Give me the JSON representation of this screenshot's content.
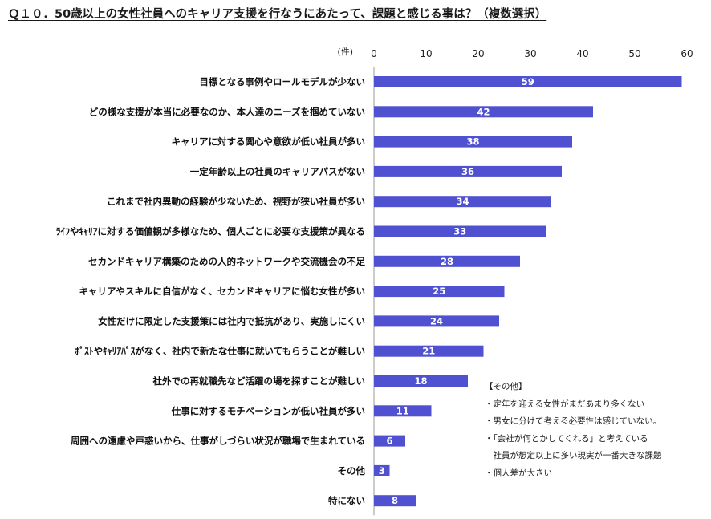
{
  "title": "Ｑ１０．50歳以上の女性社員へのキャリア支援を行なうにあたって、課題と感じる事は？（複数選択）",
  "colors": {
    "bar": "#5051d0",
    "axis": "#999999",
    "value_label": "#ffffff"
  },
  "notes": {
    "heading": "【その他】",
    "items": [
      "・定年を迎える女性がまだあまり多くない",
      "・男女に分けて考える必要性は感じていない。",
      "・「会社が何とかしてくれる」と考えている",
      "　社員が想定以上に多い現実が一番大きな課題",
      "・個人差が大きい"
    ]
  },
  "chart_data": {
    "type": "bar",
    "orientation": "horizontal",
    "unit_label": "(件)",
    "xlim": [
      0,
      60
    ],
    "ticks": [
      "0",
      "10",
      "20",
      "30",
      "40",
      "50",
      "60"
    ],
    "categories": [
      "目標となる事例やロールモデルが少ない",
      "どの様な支援が本当に必要なのか、本人達のニーズを掴めていない",
      "キャリアに対する関心や意欲が低い社員が多い",
      "一定年齢以上の社員のキャリアパスがない",
      "これまで社内異動の経験が少ないため、視野が狭い社員が多い",
      "ﾗｲﾌやｷｬﾘｱに対する価値観が多様なため、個人ごとに必要な支援策が異なる",
      "セカンドキャリア構築のための人的ネットワークや交流機会の不足",
      "キャリアやスキルに自信がなく、セカンドキャリアに悩む女性が多い",
      "女性だけに限定した支援策には社内で抵抗があり、実施しにくい",
      "ﾎﾟｽﾄやｷｬﾘｱﾊﾟｽがなく、社内で新たな仕事に就いてもらうことが難しい",
      "社外での再就職先など活躍の場を探すことが難しい",
      "仕事に対するモチベーションが低い社員が多い",
      "周囲への遠慮や戸惑いから、仕事がしづらい状況が職場で生まれている",
      "その他",
      "特にない"
    ],
    "values": [
      59,
      42,
      38,
      36,
      34,
      33,
      28,
      25,
      24,
      21,
      18,
      11,
      6,
      3,
      8
    ],
    "data_labels": [
      "59",
      "42",
      "38",
      "36",
      "34",
      "33",
      "28",
      "25",
      "24",
      "21",
      "18",
      "11",
      "6",
      "3",
      "8"
    ]
  }
}
